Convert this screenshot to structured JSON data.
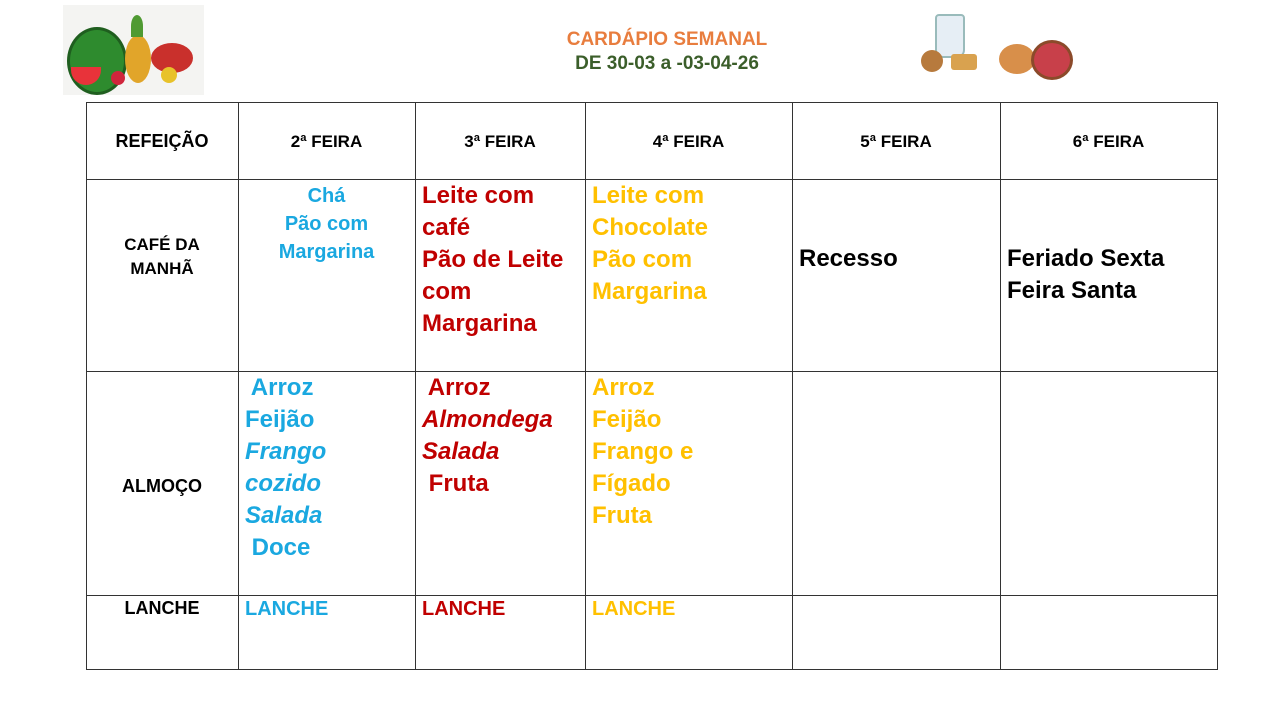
{
  "header": {
    "title": "CARDÁPIO SEMANAL",
    "dates": "DE 30-03 a -03-04-26"
  },
  "colors": {
    "title": "#e87d3e",
    "dates": "#3b5e2a",
    "monday": "#1aa8e0",
    "tuesday": "#c00000",
    "wednesday": "#ffc000"
  },
  "images": {
    "left": "fruits-illustration",
    "right": "milk-cookies-donut-illustration"
  },
  "table": {
    "columns": [
      "REFEIÇÃO",
      "2ª FEIRA",
      "3ª FEIRA",
      "4ª FEIRA",
      "5ª FEIRA",
      "6ª FEIRA"
    ],
    "rows": [
      {
        "meal": "CAFÉ DA MANHÃ",
        "mon": [
          "Chá",
          "Pão com",
          "Margarina"
        ],
        "tue": [
          "Leite com",
          "café",
          "Pão de Leite",
          "com",
          "Margarina"
        ],
        "wed": [
          "Leite com",
          "Chocolate",
          "Pão com",
          "Margarina"
        ],
        "thu": "Recesso",
        "fri": [
          "Feriado Sexta",
          "Feira Santa"
        ]
      },
      {
        "meal": "ALMOÇO",
        "mon": [
          " Arroz",
          "Feijão",
          "Frango",
          "cozido",
          "Salada",
          " Doce"
        ],
        "tue": [
          " Arroz",
          "Almondega",
          "Salada",
          " Fruta"
        ],
        "wed": [
          "Arroz",
          "Feijão",
          "Frango e",
          "Fígado",
          "Fruta"
        ]
      },
      {
        "meal": "LANCHE",
        "mon": "LANCHE",
        "tue": "LANCHE",
        "wed": "LANCHE"
      }
    ]
  }
}
